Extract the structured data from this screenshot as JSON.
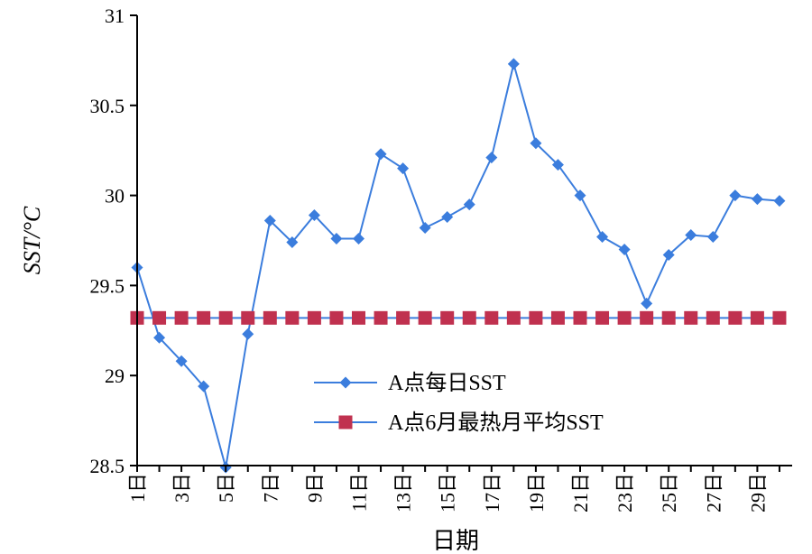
{
  "chart_data": {
    "type": "line",
    "xlabel": "日期",
    "ylabel": "SST/°C",
    "ylim": [
      28.5,
      31
    ],
    "yticks": [
      "28.5",
      "29",
      "29.5",
      "30",
      "30.5",
      "31"
    ],
    "x": [
      1,
      2,
      3,
      4,
      5,
      6,
      7,
      8,
      9,
      10,
      11,
      12,
      13,
      14,
      15,
      16,
      17,
      18,
      19,
      20,
      21,
      22,
      23,
      24,
      25,
      26,
      27,
      28,
      29,
      30
    ],
    "xtick_labels": [
      "1日",
      "3日",
      "5日",
      "7日",
      "9日",
      "11日",
      "13日",
      "15日",
      "17日",
      "19日",
      "21日",
      "23日",
      "25日",
      "27日",
      "29日"
    ],
    "series": [
      {
        "name": "A点每日SST",
        "color": "#3b7ddd",
        "marker": "diamond",
        "values": [
          29.6,
          29.21,
          29.08,
          28.94,
          28.49,
          29.23,
          29.86,
          29.74,
          29.89,
          29.76,
          29.76,
          30.23,
          30.15,
          29.82,
          29.88,
          29.95,
          30.21,
          30.73,
          30.29,
          30.17,
          30.0,
          29.77,
          29.7,
          29.4,
          29.67,
          29.78,
          29.77,
          30.0,
          29.98,
          29.97
        ]
      },
      {
        "name": "A点6月最热月平均SST",
        "color": "#c0314f",
        "line_color": "#3b7ddd",
        "marker": "square",
        "values": [
          29.32,
          29.32,
          29.32,
          29.32,
          29.32,
          29.32,
          29.32,
          29.32,
          29.32,
          29.32,
          29.32,
          29.32,
          29.32,
          29.32,
          29.32,
          29.32,
          29.32,
          29.32,
          29.32,
          29.32,
          29.32,
          29.32,
          29.32,
          29.32,
          29.32,
          29.32,
          29.32,
          29.32,
          29.32,
          29.32
        ]
      }
    ],
    "legend": {
      "placement": "bottom-center"
    },
    "grid": false
  }
}
